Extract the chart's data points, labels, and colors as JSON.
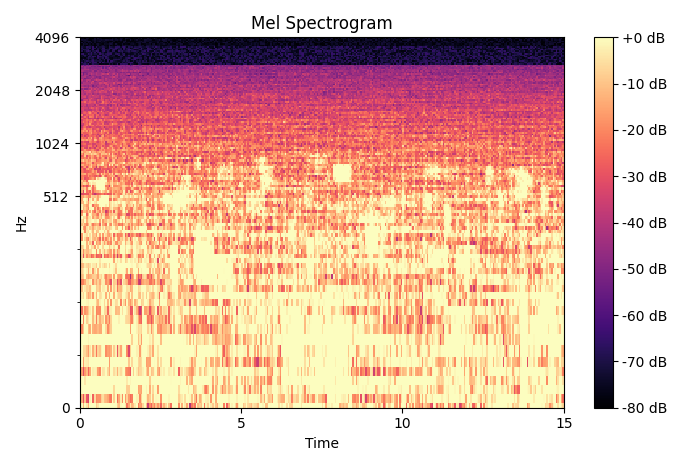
{
  "title": "Mel Spectrogram",
  "xlabel": "Time",
  "ylabel": "Hz",
  "x_min": 0,
  "x_max": 15,
  "x_ticks": [
    0,
    5,
    10,
    15
  ],
  "y_ticks": [
    0,
    512,
    1024,
    2048,
    4096
  ],
  "colorbar_label_ticks": [
    0,
    -10,
    -20,
    -30,
    -40,
    -50,
    -60,
    -70,
    -80
  ],
  "colorbar_labels": [
    "+0 dB",
    "-10 dB",
    "-20 dB",
    "-30 dB",
    "-40 dB",
    "-50 dB",
    "-60 dB",
    "-70 dB",
    "-80 dB"
  ],
  "vmin": -80,
  "vmax": 0,
  "colormap": "magma",
  "figsize": [
    7.0,
    4.66
  ],
  "dpi": 100,
  "seed": 42,
  "n_mels": 128,
  "n_time": 300,
  "sr": 8192,
  "fmax": 4096,
  "duration": 15.0
}
